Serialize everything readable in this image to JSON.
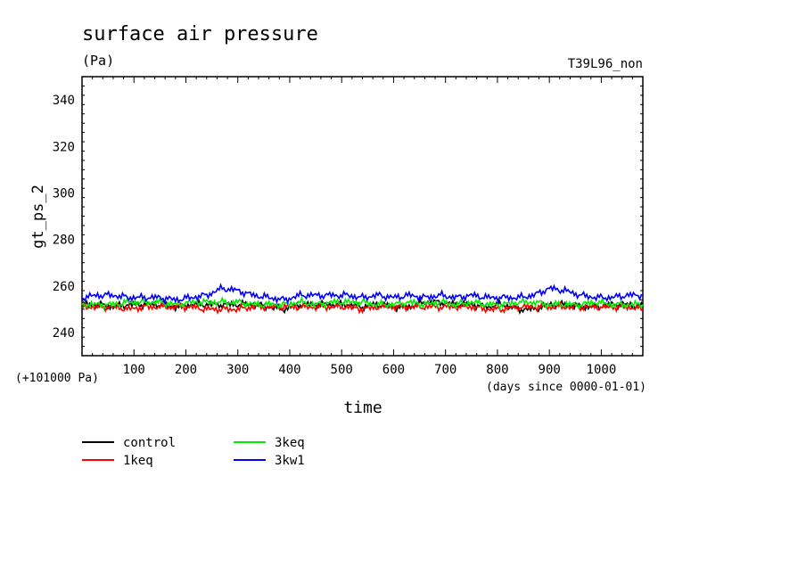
{
  "chart_data": {
    "type": "line",
    "title": "surface air pressure",
    "units": "(Pa)",
    "run_label": "T39L96_non",
    "ylabel": "gt_ps_2",
    "xlabel": "time",
    "x_unit_note": "(days since 0000-01-01)",
    "y_offset_note": "(+101000 Pa)",
    "xlim": [
      0,
      1080
    ],
    "ylim": [
      230,
      350
    ],
    "x_ticks": [
      "100",
      "200",
      "300",
      "400",
      "500",
      "600",
      "700",
      "800",
      "900",
      "1000"
    ],
    "y_ticks": [
      "240",
      "260",
      "280",
      "300",
      "320",
      "340"
    ],
    "x": [
      0,
      30,
      60,
      90,
      120,
      150,
      180,
      210,
      240,
      270,
      300,
      330,
      360,
      390,
      420,
      450,
      480,
      510,
      540,
      570,
      600,
      630,
      660,
      690,
      720,
      750,
      780,
      810,
      840,
      870,
      900,
      930,
      960,
      990,
      1020,
      1050,
      1080
    ],
    "series": [
      {
        "name": "control",
        "color": "#000000",
        "values": [
          252,
          252,
          251,
          252,
          252,
          252,
          251,
          252,
          252,
          252,
          252,
          252,
          251,
          250,
          252,
          252,
          252,
          252,
          251,
          252,
          251,
          251,
          253,
          253,
          252,
          252,
          251,
          252,
          250,
          250,
          252,
          252,
          251,
          251,
          252,
          252,
          251
        ]
      },
      {
        "name": "1keq",
        "color": "#ff0000",
        "values": [
          251,
          251,
          251,
          250,
          251,
          251,
          251,
          251,
          250,
          250,
          250,
          251,
          251,
          251,
          251,
          251,
          251,
          251,
          250,
          251,
          251,
          251,
          251,
          251,
          251,
          251,
          250,
          250,
          251,
          251,
          251,
          251,
          251,
          251,
          251,
          251,
          250
        ]
      },
      {
        "name": "3keq",
        "color": "#00ee00",
        "values": [
          252,
          252,
          252,
          253,
          253,
          253,
          252,
          253,
          253,
          253,
          253,
          252,
          252,
          252,
          253,
          252,
          253,
          253,
          253,
          252,
          252,
          253,
          252,
          253,
          252,
          253,
          252,
          252,
          253,
          253,
          252,
          252,
          252,
          253,
          252,
          252,
          252
        ]
      },
      {
        "name": "3kw1",
        "color": "#0000ff",
        "values": [
          255,
          256,
          256,
          255,
          255,
          255,
          254,
          255,
          256,
          259,
          258,
          256,
          255,
          254,
          256,
          256,
          256,
          256,
          255,
          256,
          255,
          256,
          255,
          256,
          255,
          256,
          255,
          255,
          255,
          256,
          259,
          258,
          256,
          255,
          255,
          256,
          256
        ]
      }
    ],
    "legend_position": "bottom-left",
    "grid": false
  }
}
